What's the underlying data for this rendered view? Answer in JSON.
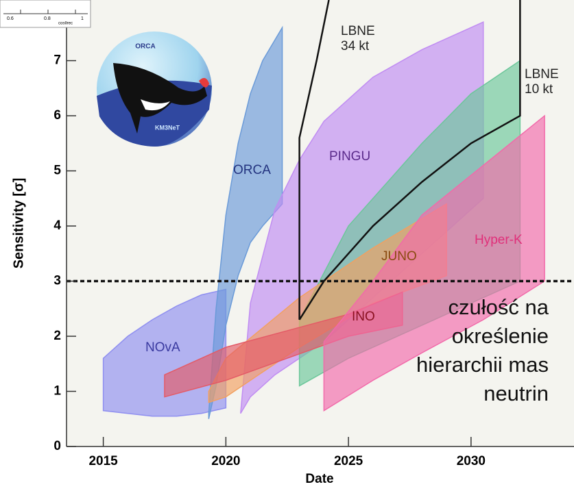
{
  "chart_data": {
    "type": "band",
    "xlabel": "Date",
    "ylabel": "Sensitivity [σ]",
    "xlim": [
      2013.5,
      2034.2
    ],
    "xticks": [
      2015,
      2020,
      2025,
      2030
    ],
    "ylim": [
      0,
      8.1
    ],
    "yticks": [
      0,
      1,
      2,
      3,
      4,
      5,
      6,
      7
    ],
    "threshold": 3,
    "series": [
      {
        "name": "NOvA",
        "color": "#8f8ff0",
        "x": [
          2015,
          2016,
          2017,
          2018,
          2019,
          2020
        ],
        "upper": [
          1.6,
          2.0,
          2.3,
          2.55,
          2.75,
          2.85
        ],
        "lower": [
          0.65,
          0.6,
          0.55,
          0.55,
          0.6,
          0.7
        ]
      },
      {
        "name": "ORCA",
        "color": "#6a9ad8",
        "x": [
          2019.3,
          2019.6,
          2020,
          2020.5,
          2021,
          2021.5,
          2022.3
        ],
        "upper": [
          0.6,
          2.5,
          4.2,
          5.5,
          6.4,
          7.0,
          7.6
        ],
        "lower": [
          0.5,
          1.1,
          2.2,
          3.1,
          3.7,
          4.0,
          4.4
        ]
      },
      {
        "name": "PINGU",
        "color": "#c08cf2",
        "x": [
          2020.6,
          2021,
          2022,
          2023,
          2024,
          2026,
          2028,
          2030.5
        ],
        "upper": [
          0.6,
          2.6,
          4.3,
          5.2,
          5.9,
          6.7,
          7.2,
          7.7
        ],
        "lower": [
          0.6,
          0.9,
          1.3,
          1.6,
          1.9,
          2.7,
          3.5,
          4.5
        ]
      },
      {
        "name": "LBNE 10 kt",
        "color": "#6cc79a",
        "x": [
          2023,
          2025,
          2028,
          2030,
          2032
        ],
        "upper": [
          2.3,
          4.0,
          5.5,
          6.4,
          7.0
        ],
        "lower": [
          1.1,
          1.6,
          2.2,
          2.6,
          3.0
        ]
      },
      {
        "name": "JUNO",
        "color": "#f2a060",
        "x": [
          2019.3,
          2020,
          2023,
          2026,
          2029
        ],
        "upper": [
          1.0,
          1.6,
          2.7,
          3.6,
          4.4
        ],
        "lower": [
          0.8,
          0.9,
          1.8,
          2.6,
          3.1
        ]
      },
      {
        "name": "INO",
        "color": "#e45a66",
        "x": [
          2017.5,
          2020,
          2022.5,
          2025,
          2027.2
        ],
        "upper": [
          1.3,
          1.8,
          2.1,
          2.4,
          2.8
        ],
        "lower": [
          0.9,
          1.2,
          1.6,
          2.0,
          2.2
        ]
      },
      {
        "name": "Hyper-K",
        "color": "#f26aaa",
        "x": [
          2024,
          2026,
          2028,
          2030.5,
          2033
        ],
        "upper": [
          1.9,
          3.0,
          4.2,
          5.1,
          6.0
        ],
        "lower": [
          0.65,
          1.2,
          1.7,
          2.3,
          3.0
        ]
      }
    ],
    "lines": [
      {
        "name": "LBNE 34 kt",
        "color": "#111111",
        "x": [
          2023,
          2023,
          2023.7,
          2024.2
        ],
        "values": [
          2.3,
          5.6,
          7.0,
          8.1
        ]
      },
      {
        "color": "#111111",
        "x": [
          2023,
          2024,
          2026,
          2028,
          2030,
          2032,
          2032
        ],
        "values": [
          2.3,
          3.0,
          4.0,
          4.8,
          5.5,
          6.0,
          8.1
        ]
      }
    ],
    "annotation": "czułość na określenie hierarchii mas neutrin"
  },
  "logo": {
    "title": "ORCA",
    "subtitle": "KM3NeT"
  },
  "inset": {
    "ticks": [
      "0.6",
      "0.8",
      "1"
    ],
    "label": "cosθrec"
  }
}
